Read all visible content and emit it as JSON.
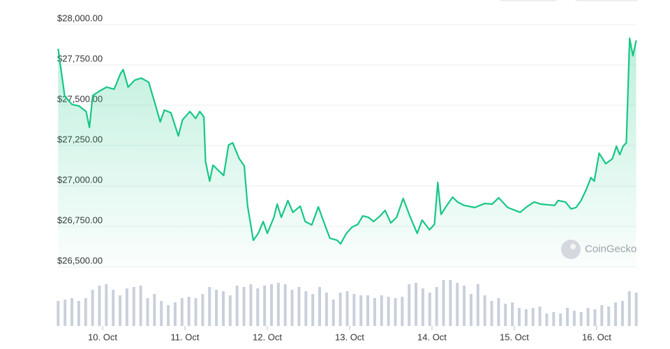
{
  "chart_data": [
    {
      "type": "line",
      "color": "#16c784",
      "x": [
        9.46,
        9.54,
        9.63,
        9.71,
        9.8,
        9.84,
        9.88,
        9.97,
        10.05,
        10.14,
        10.22,
        10.25,
        10.31,
        10.39,
        10.47,
        10.56,
        10.64,
        10.7,
        10.75,
        10.83,
        10.92,
        10.97,
        11.06,
        11.13,
        11.18,
        11.23,
        11.25,
        11.3,
        11.34,
        11.47,
        11.53,
        11.58,
        11.66,
        11.72,
        11.76,
        11.83,
        11.89,
        11.95,
        12.0,
        12.08,
        12.12,
        12.17,
        12.25,
        12.31,
        12.4,
        12.46,
        12.54,
        12.62,
        12.69,
        12.76,
        12.85,
        12.89,
        12.96,
        13.03,
        13.1,
        13.16,
        13.23,
        13.29,
        13.37,
        13.43,
        13.5,
        13.57,
        13.65,
        13.73,
        13.82,
        13.88,
        13.97,
        14.03,
        14.07,
        14.11,
        14.18,
        14.25,
        14.31,
        14.39,
        14.52,
        14.64,
        14.73,
        14.81,
        14.92,
        15.07,
        15.15,
        15.24,
        15.32,
        15.49,
        15.53,
        15.62,
        15.69,
        15.75,
        15.81,
        15.87,
        15.93,
        15.97,
        16.03,
        16.11,
        16.19,
        16.24,
        16.28,
        16.32,
        16.36,
        16.4,
        16.44,
        16.48
      ],
      "values": [
        27849,
        27556,
        27504,
        27496,
        27461,
        27362,
        27560,
        27590,
        27612,
        27599,
        27698,
        27720,
        27612,
        27655,
        27668,
        27642,
        27504,
        27397,
        27470,
        27453,
        27310,
        27409,
        27461,
        27418,
        27461,
        27427,
        27151,
        27030,
        27129,
        27065,
        27254,
        27267,
        27168,
        27125,
        26879,
        26664,
        26707,
        26780,
        26707,
        26806,
        26888,
        26806,
        26910,
        26837,
        26875,
        26780,
        26759,
        26871,
        26772,
        26677,
        26664,
        26642,
        26707,
        26746,
        26763,
        26815,
        26806,
        26780,
        26815,
        26849,
        26772,
        26806,
        26923,
        26815,
        26707,
        26789,
        26729,
        26763,
        27022,
        26824,
        26880,
        26931,
        26901,
        26880,
        26867,
        26892,
        26888,
        26927,
        26867,
        26837,
        26871,
        26901,
        26888,
        26880,
        26910,
        26901,
        26858,
        26867,
        26910,
        26974,
        27052,
        27030,
        27203,
        27138,
        27168,
        27246,
        27194,
        27246,
        27267,
        27914,
        27806,
        27901
      ],
      "xlim": [
        9.46,
        16.48
      ],
      "xticks": [
        {
          "value": 10,
          "label": "10. Oct"
        },
        {
          "value": 11,
          "label": "11. Oct"
        },
        {
          "value": 12,
          "label": "12. Oct"
        },
        {
          "value": 13,
          "label": "13. Oct"
        },
        {
          "value": 14,
          "label": "14. Oct"
        },
        {
          "value": 15,
          "label": "15. Oct"
        },
        {
          "value": 16,
          "label": "16. Oct"
        }
      ],
      "ylim": [
        26500,
        28000
      ],
      "yticks": [
        {
          "value": 26500,
          "label": "$26,500.00"
        },
        {
          "value": 26750,
          "label": "$26,750.00"
        },
        {
          "value": 27000,
          "label": "$27,000.00"
        },
        {
          "value": 27250,
          "label": "$27,250.00"
        },
        {
          "value": 27500,
          "label": "$27,500.00"
        },
        {
          "value": 27750,
          "label": "$27,750.00"
        },
        {
          "value": 28000,
          "label": "$28,000.00"
        }
      ],
      "grid": true,
      "watermark": "CoinGecko"
    },
    {
      "type": "bar",
      "color": "#c9d0dc",
      "values": [
        36,
        38,
        40,
        36,
        40,
        52,
        58,
        60,
        52,
        44,
        54,
        56,
        58,
        40,
        46,
        36,
        30,
        34,
        40,
        42,
        40,
        46,
        56,
        52,
        50,
        44,
        58,
        56,
        60,
        54,
        58,
        60,
        62,
        60,
        52,
        56,
        50,
        46,
        56,
        48,
        38,
        48,
        50,
        46,
        44,
        44,
        40,
        44,
        42,
        40,
        42,
        60,
        62,
        54,
        48,
        56,
        66,
        66,
        62,
        58,
        46,
        60,
        44,
        36,
        40,
        32,
        34,
        26,
        24,
        26,
        28,
        18,
        20,
        18,
        26,
        22,
        20,
        26,
        24,
        30,
        28,
        34,
        36,
        50,
        48
      ],
      "ylim": [
        0,
        70
      ]
    }
  ]
}
